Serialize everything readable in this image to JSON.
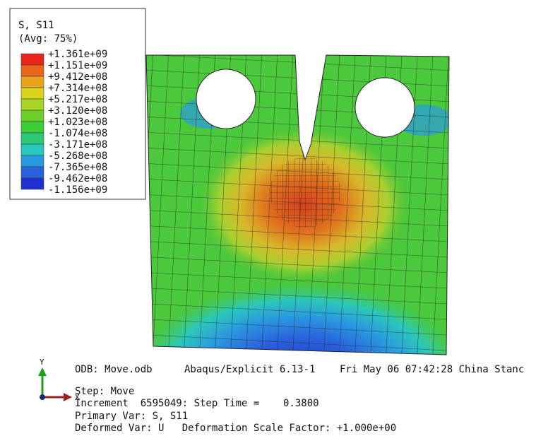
{
  "legend": {
    "title": "S, S11",
    "subtitle": "(Avg: 75%)",
    "labels": [
      "+1.361e+09",
      "+1.151e+09",
      "+9.412e+08",
      "+7.314e+08",
      "+5.217e+08",
      "+3.120e+08",
      "+1.023e+08",
      "-1.074e+08",
      "-3.171e+08",
      "-5.268e+08",
      "-7.365e+08",
      "-9.462e+08",
      "-1.156e+09"
    ],
    "colors": [
      "#e8241c",
      "#e8661c",
      "#eaa41c",
      "#d9d41e",
      "#a8d426",
      "#6fcf2a",
      "#3ccc3a",
      "#2cc878",
      "#28c8c0",
      "#2a9ae0",
      "#2a62dc",
      "#2030d0"
    ]
  },
  "triad": {
    "y": "Y",
    "x": "X"
  },
  "info": {
    "odb": "ODB: Move.odb",
    "solver": "Abaqus/Explicit 6.13-1",
    "date": "Fri May 06 07:42:28 China Stanc",
    "step": "Step: Move",
    "increment": "Increment  6595049: Step Time =    0.3800",
    "primary": "Primary Var: S, S11",
    "deformed": "Deformed Var: U   Deformation Scale Factor: +1.000e+00"
  }
}
